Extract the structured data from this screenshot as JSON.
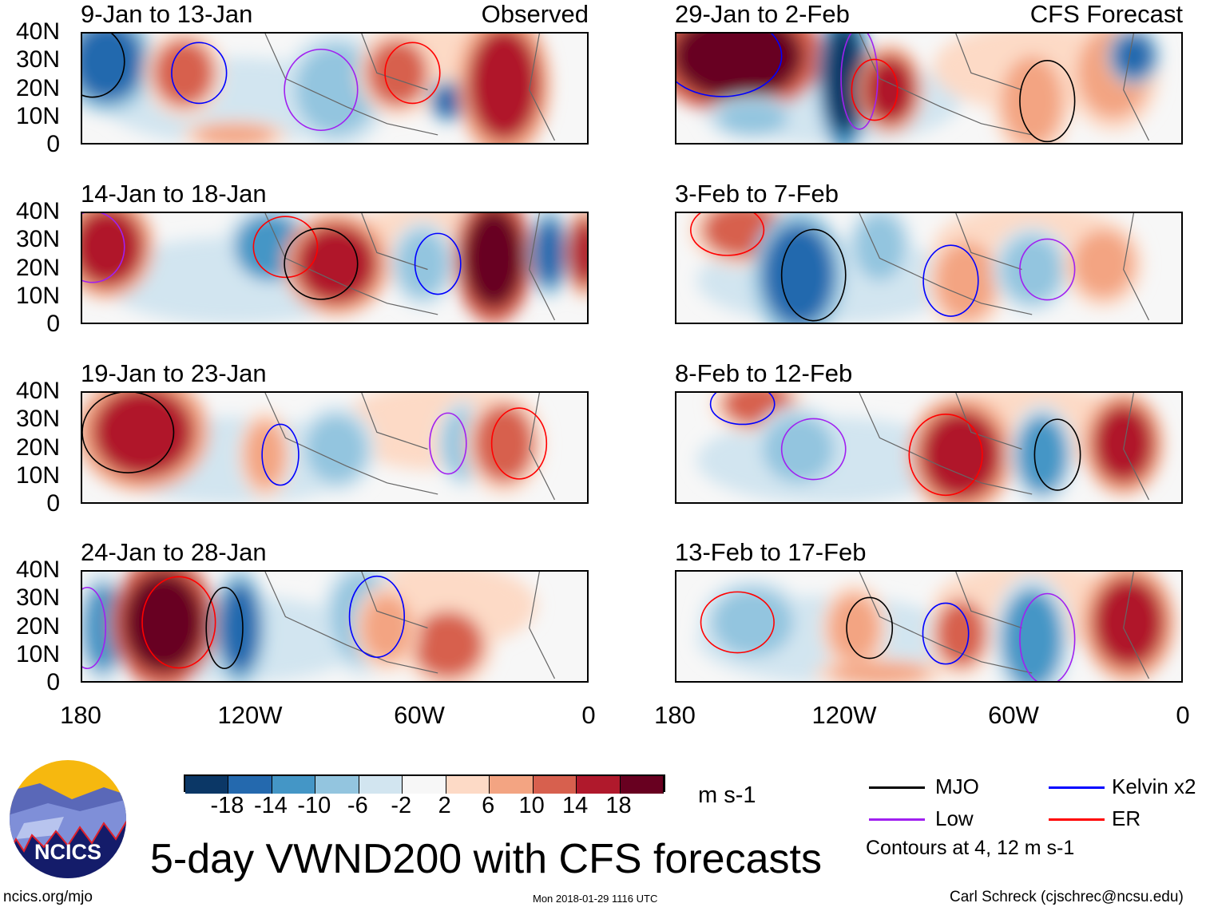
{
  "panels": [
    {
      "title": "9-Jan to 13-Jan",
      "tag": "Observed"
    },
    {
      "title": "29-Jan to 2-Feb",
      "tag": "CFS Forecast"
    },
    {
      "title": "14-Jan to 18-Jan"
    },
    {
      "title": "3-Feb to 7-Feb"
    },
    {
      "title": "19-Jan to 23-Jan"
    },
    {
      "title": "8-Feb to 12-Feb"
    },
    {
      "title": "24-Jan to 28-Jan"
    },
    {
      "title": "13-Feb to 17-Feb"
    }
  ],
  "lat_labels": [
    "40N",
    "30N",
    "20N",
    "10N",
    "0"
  ],
  "lon_labels": [
    "180",
    "120W",
    "60W",
    "0"
  ],
  "colorbar": {
    "colors": [
      "#0b3766",
      "#2469ae",
      "#4496c6",
      "#93c5df",
      "#d2e5f0",
      "#f7f7f7",
      "#fddac6",
      "#f3a482",
      "#d7604e",
      "#b0192c",
      "#680020"
    ],
    "labels": [
      "-18",
      "-14",
      "-10",
      "-6",
      "-2",
      "2",
      "6",
      "10",
      "14",
      "18"
    ],
    "units": "m s-1"
  },
  "legend": {
    "items": [
      {
        "label": "MJO",
        "color": "#000000"
      },
      {
        "label": "Kelvin x2",
        "color": "#0000ff"
      },
      {
        "label": "Low",
        "color": "#a020f0"
      },
      {
        "label": "ER",
        "color": "#ff0000"
      }
    ],
    "note": "Contours at 4, 12 m s-1"
  },
  "logo_text": "NCICS",
  "main_title": "5-day VWND200 with CFS forecasts",
  "footer": {
    "url": "ncics.org/mjo",
    "timestamp": "Mon 2018-01-29 1116 UTC",
    "author": "Carl Schreck (cjschrec@ncsu.edu)"
  }
}
